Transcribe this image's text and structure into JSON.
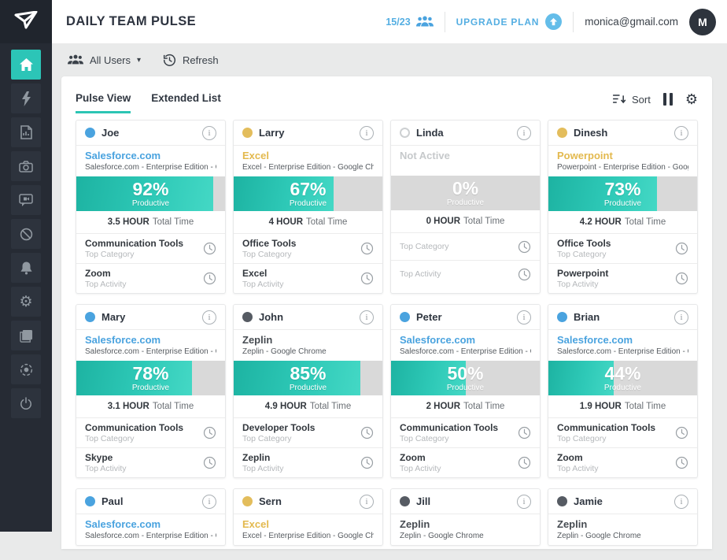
{
  "header": {
    "title": "DAILY TEAM PULSE",
    "usage_count": "15/23",
    "upgrade_label": "UPGRADE PLAN",
    "account_email": "monica@gmail.com",
    "avatar_initial": "M"
  },
  "sidebar": {
    "items": [
      {
        "icon": "home-icon",
        "active": true
      },
      {
        "icon": "flash-icon",
        "active": false
      },
      {
        "icon": "report-icon",
        "active": false
      },
      {
        "icon": "camera-icon",
        "active": false
      },
      {
        "icon": "video-chat-icon",
        "active": false
      },
      {
        "icon": "block-icon",
        "active": false
      },
      {
        "icon": "alarm-icon",
        "active": false
      },
      {
        "icon": "settings-icon",
        "active": false
      },
      {
        "icon": "logs-icon",
        "active": false
      },
      {
        "icon": "globe-icon",
        "active": false
      },
      {
        "icon": "power-icon",
        "active": false
      }
    ]
  },
  "toolbar": {
    "filter_label": "All Users",
    "refresh_label": "Refresh"
  },
  "tabs": [
    {
      "label": "Pulse View",
      "active": true
    },
    {
      "label": "Extended List",
      "active": false
    }
  ],
  "controls": {
    "sort_label": "Sort"
  },
  "strings": {
    "productive": "Productive",
    "total_time": "Total Time",
    "top_category": "Top Category",
    "top_activity": "Top Activity"
  },
  "colors": {
    "accent_teal": "#2cc5b4",
    "link_blue": "#4aa3df",
    "gold": "#e3b94e",
    "sidebar_dark": "#262b34",
    "bar_empty_gray": "#d9d9d9"
  },
  "users": [
    {
      "name": "Joe",
      "status": "blue",
      "app": "Salesforce.com",
      "app_style": "blue",
      "app_detail": "Salesforce.com - Enterprise Edition - Google...",
      "pct": 92,
      "pct_text": "92%",
      "total_time": "3.5 HOUR",
      "category": "Communication Tools",
      "activity": "Zoom"
    },
    {
      "name": "Larry",
      "status": "gold",
      "app": "Excel",
      "app_style": "gold",
      "app_detail": "Excel - Enterprise Edition - Google Chrome...",
      "pct": 67,
      "pct_text": "67%",
      "total_time": "4 HOUR",
      "category": "Office Tools",
      "activity": "Excel"
    },
    {
      "name": "Linda",
      "status": "inactive",
      "app": "Not Active",
      "app_style": "muted",
      "app_detail": "",
      "pct": 0,
      "pct_text": "0%",
      "total_time": "0 HOUR",
      "category": "",
      "activity": ""
    },
    {
      "name": "Dinesh",
      "status": "gold",
      "app": "Powerpoint",
      "app_style": "gold",
      "app_detail": "Powerpoint - Enterprise Edition - Google...",
      "pct": 73,
      "pct_text": "73%",
      "total_time": "4.2 HOUR",
      "category": "Office Tools",
      "activity": "Powerpoint"
    },
    {
      "name": "Mary",
      "status": "blue",
      "app": "Salesforce.com",
      "app_style": "blue",
      "app_detail": "Salesforce.com - Enterprise Edition - Google...",
      "pct": 78,
      "pct_text": "78%",
      "total_time": "3.1 HOUR",
      "category": "Communication Tools",
      "activity": "Skype"
    },
    {
      "name": "John",
      "status": "dark",
      "app": "Zeplin",
      "app_style": "dark",
      "app_detail": "Zeplin - Google Chrome",
      "pct": 85,
      "pct_text": "85%",
      "total_time": "4.9 HOUR",
      "category": "Developer Tools",
      "activity": "Zeplin"
    },
    {
      "name": "Peter",
      "status": "blue",
      "app": "Salesforce.com",
      "app_style": "blue",
      "app_detail": "Salesforce.com - Enterprise Edition - Google...",
      "pct": 50,
      "pct_text": "50%",
      "total_time": "2 HOUR",
      "category": "Communication Tools",
      "activity": "Zoom"
    },
    {
      "name": "Brian",
      "status": "blue",
      "app": "Salesforce.com",
      "app_style": "blue",
      "app_detail": "Salesforce.com - Enterprise Edition - Google...",
      "pct": 44,
      "pct_text": "44%",
      "total_time": "1.9 HOUR",
      "category": "Communication Tools",
      "activity": "Zoom"
    },
    {
      "name": "Paul",
      "status": "blue",
      "app": "Salesforce.com",
      "app_style": "blue",
      "app_detail": "Salesforce.com - Enterprise Edition - Google..."
    },
    {
      "name": "Sern",
      "status": "gold",
      "app": "Excel",
      "app_style": "gold",
      "app_detail": "Excel - Enterprise Edition - Google Chrome..."
    },
    {
      "name": "Jill",
      "status": "dark",
      "app": "Zeplin",
      "app_style": "dark",
      "app_detail": "Zeplin - Google Chrome"
    },
    {
      "name": "Jamie",
      "status": "dark",
      "app": "Zeplin",
      "app_style": "dark",
      "app_detail": "Zeplin - Google Chrome"
    }
  ]
}
